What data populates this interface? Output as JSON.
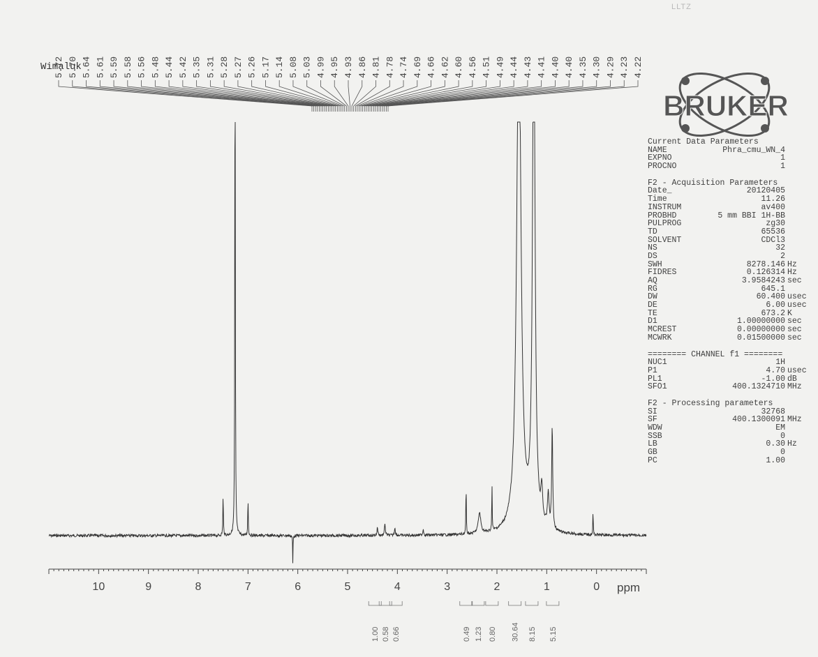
{
  "header": {
    "stamp": "LLTZ",
    "sample": "Wimaluk"
  },
  "logo": {
    "text": "BRUKER"
  },
  "parameters": {
    "current": {
      "title": "Current Data Parameters",
      "rows": [
        [
          "NAME",
          "Phra_cmu_WN_4",
          ""
        ],
        [
          "EXPNO",
          "1",
          ""
        ],
        [
          "PROCNO",
          "1",
          ""
        ]
      ]
    },
    "acquisition": {
      "title": "F2 - Acquisition Parameters",
      "rows": [
        [
          "Date_",
          "20120405",
          ""
        ],
        [
          "Time",
          "11.26",
          ""
        ],
        [
          "INSTRUM",
          "av400",
          ""
        ],
        [
          "PROBHD",
          "5 mm BBI 1H-BB",
          ""
        ],
        [
          "PULPROG",
          "zg30",
          ""
        ],
        [
          "TD",
          "65536",
          ""
        ],
        [
          "SOLVENT",
          "CDCl3",
          ""
        ],
        [
          "NS",
          "32",
          ""
        ],
        [
          "DS",
          "2",
          ""
        ],
        [
          "SWH",
          "8278.146",
          "Hz"
        ],
        [
          "FIDRES",
          "0.126314",
          "Hz"
        ],
        [
          "AQ",
          "3.9584243",
          "sec"
        ],
        [
          "RG",
          "645.1",
          ""
        ],
        [
          "DW",
          "60.400",
          "usec"
        ],
        [
          "DE",
          "6.00",
          "usec"
        ],
        [
          "TE",
          "673.2",
          "K"
        ],
        [
          "D1",
          "1.00000000",
          "sec"
        ],
        [
          "MCREST",
          "0.00000000",
          "sec"
        ],
        [
          "MCWRK",
          "0.01500000",
          "sec"
        ]
      ]
    },
    "channel": {
      "title": "======== CHANNEL f1 ========",
      "rows": [
        [
          "NUC1",
          "1H",
          ""
        ],
        [
          "P1",
          "4.70",
          "usec"
        ],
        [
          "PL1",
          "-1.00",
          "dB"
        ],
        [
          "SFO1",
          "400.1324710",
          "MHz"
        ]
      ]
    },
    "processing": {
      "title": "F2 - Processing parameters",
      "rows": [
        [
          "SI",
          "32768",
          ""
        ],
        [
          "SF",
          "400.1300091",
          "MHz"
        ],
        [
          "WDW",
          "EM",
          ""
        ],
        [
          "SSB",
          "0",
          ""
        ],
        [
          "LB",
          "0.30",
          "Hz"
        ],
        [
          "GB",
          "0",
          ""
        ],
        [
          "PC",
          "1.00",
          ""
        ]
      ]
    }
  },
  "chart_data": {
    "type": "line",
    "title": "",
    "xlabel": "ppm",
    "xlim": [
      11.0,
      -1.0
    ],
    "x_reversed": true,
    "x_ticks": [
      10,
      9,
      8,
      7,
      6,
      5,
      4,
      3,
      2,
      1,
      0
    ],
    "ylim": [
      0,
      1.0
    ],
    "baseline": 0.02,
    "series": [
      {
        "peaks": [
          {
            "shift": 7.5,
            "height": 0.1,
            "width": 0.006
          },
          {
            "shift": 7.26,
            "height": 1.35,
            "width": 0.006
          },
          {
            "shift": 7.0,
            "height": 0.09,
            "width": 0.006
          },
          {
            "shift": 6.1,
            "height": -0.07,
            "width": 0.004
          },
          {
            "shift": 4.4,
            "height": 0.02,
            "width": 0.01
          },
          {
            "shift": 4.25,
            "height": 0.03,
            "width": 0.01
          },
          {
            "shift": 4.05,
            "height": 0.02,
            "width": 0.01
          },
          {
            "shift": 3.48,
            "height": 0.015,
            "width": 0.01
          },
          {
            "shift": 2.62,
            "height": 0.13,
            "width": 0.005
          },
          {
            "shift": 2.35,
            "height": 0.05,
            "width": 0.03
          },
          {
            "shift": 2.1,
            "height": 0.12,
            "width": 0.005
          },
          {
            "shift": 1.56,
            "height": 1.3,
            "width": 0.05
          },
          {
            "shift": 1.26,
            "height": 1.3,
            "width": 0.03
          },
          {
            "shift": 1.1,
            "height": 0.08,
            "width": 0.02
          },
          {
            "shift": 0.97,
            "height": 0.08,
            "width": 0.02
          },
          {
            "shift": 0.89,
            "height": 0.25,
            "width": 0.012
          },
          {
            "shift": 0.07,
            "height": 0.06,
            "width": 0.005
          }
        ]
      }
    ],
    "peak_labels": [
      "5.72",
      "5.70",
      "5.64",
      "5.61",
      "5.59",
      "5.58",
      "5.56",
      "5.48",
      "5.44",
      "5.42",
      "5.35",
      "5.31",
      "5.28",
      "5.27",
      "5.26",
      "5.17",
      "5.14",
      "5.08",
      "5.03",
      "4.99",
      "4.95",
      "4.93",
      "4.86",
      "4.81",
      "4.78",
      "4.74",
      "4.69",
      "4.66",
      "4.62",
      "4.60",
      "4.56",
      "4.51",
      "4.49",
      "4.44",
      "4.43",
      "4.41",
      "4.40",
      "4.40",
      "4.35",
      "4.30",
      "4.29",
      "4.23",
      "4.22"
    ],
    "integrals": [
      {
        "value": "1.00",
        "center": 4.45
      },
      {
        "value": "0.58",
        "center": 4.24
      },
      {
        "value": "0.66",
        "center": 4.03
      },
      {
        "value": "0.49",
        "center": 2.62
      },
      {
        "value": "1.23",
        "center": 2.38
      },
      {
        "value": "0.80",
        "center": 2.1
      },
      {
        "value": "30.64",
        "center": 1.64
      },
      {
        "value": "8.15",
        "center": 1.3
      },
      {
        "value": "5.15",
        "center": 0.88
      }
    ]
  }
}
